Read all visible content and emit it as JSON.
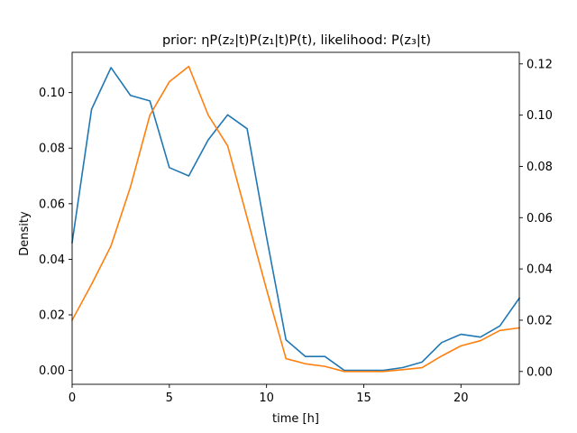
{
  "chart_data": {
    "type": "line",
    "title": "prior: ηP(z₂|t)P(z₁|t)P(t), likelihood: P(z₃|t)",
    "xlabel": "time [h]",
    "ylabel": "Density",
    "x": [
      0,
      1,
      2,
      3,
      4,
      5,
      6,
      7,
      8,
      9,
      10,
      11,
      12,
      13,
      14,
      15,
      16,
      17,
      18,
      19,
      20,
      21,
      22,
      23
    ],
    "xlim": [
      0,
      23
    ],
    "x_ticks": [
      0,
      5,
      10,
      15,
      20
    ],
    "x_tick_labels": [
      "0",
      "5",
      "10",
      "15",
      "20"
    ],
    "left_axis": {
      "ylim": [
        -0.005,
        0.1145
      ],
      "ticks": [
        0.0,
        0.02,
        0.04,
        0.06,
        0.08,
        0.1
      ],
      "tick_labels": [
        "0.00",
        "0.02",
        "0.04",
        "0.06",
        "0.08",
        "0.10"
      ]
    },
    "right_axis": {
      "ylim": [
        -0.005,
        0.1245
      ],
      "ticks": [
        0.0,
        0.02,
        0.04,
        0.06,
        0.08,
        0.1,
        0.12
      ],
      "tick_labels": [
        "0.00",
        "0.02",
        "0.04",
        "0.06",
        "0.08",
        "0.10",
        "0.12"
      ]
    },
    "series": [
      {
        "axis": "left",
        "color": "#1f77b4",
        "values": [
          0.046,
          0.094,
          0.109,
          0.099,
          0.097,
          0.073,
          0.07,
          0.083,
          0.092,
          0.087,
          0.048,
          0.011,
          0.005,
          0.005,
          0.0,
          0.0,
          0.0,
          0.001,
          0.003,
          0.01,
          0.013,
          0.012,
          0.016,
          0.026
        ]
      },
      {
        "axis": "right",
        "color": "#ff7f0e",
        "values": [
          0.02,
          0.034,
          0.049,
          0.072,
          0.1,
          0.113,
          0.119,
          0.1,
          0.088,
          0.06,
          0.032,
          0.005,
          0.003,
          0.002,
          0.0,
          0.0,
          0.0,
          0.0007,
          0.0015,
          0.006,
          0.01,
          0.012,
          0.016,
          0.017
        ]
      }
    ],
    "grid": false,
    "legend": "none"
  }
}
